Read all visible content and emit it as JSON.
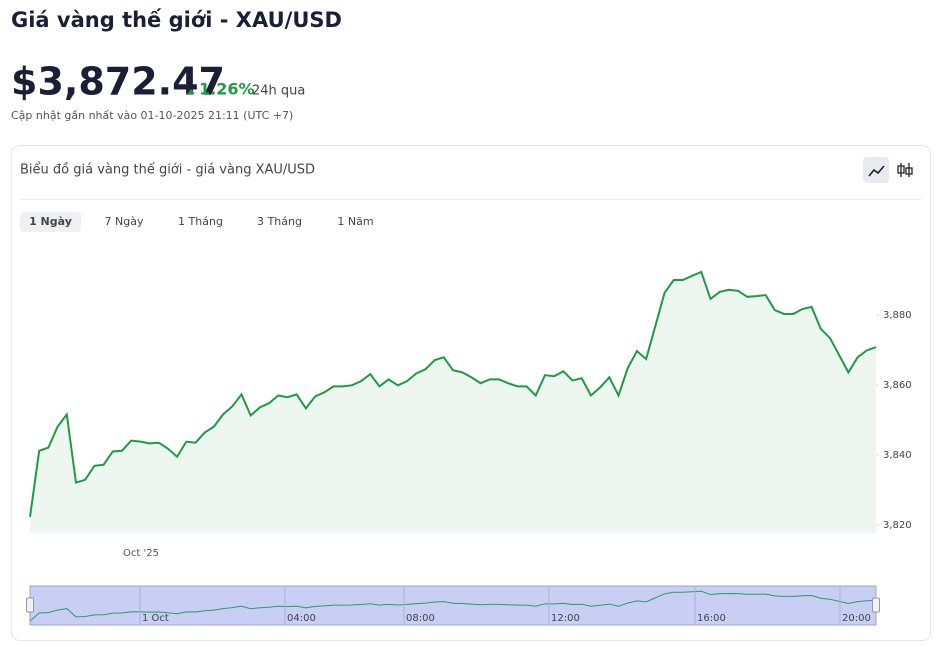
{
  "header": {
    "title": "Giá vàng thế giới - XAU/USD",
    "price": "$3,872.47",
    "change": "1.26%",
    "change_period": "24h qua",
    "updated": "Cập nhật gần nhất vào 01-10-2025 21:11 (UTC +7)"
  },
  "chart_data": {
    "type": "area",
    "title": "Biểu đồ giá vàng thế giới - giá vàng XAU/USD",
    "tabs": [
      "1 Ngày",
      "7 Ngày",
      "1 Tháng",
      "3 Tháng",
      "1 Năm"
    ],
    "active_tab": 0,
    "x_label": "Oct '25",
    "values": [
      3822.3,
      3841.2,
      3842.1,
      3848.1,
      3851.6,
      3832.1,
      3832.9,
      3836.9,
      3837.2,
      3841.0,
      3841.2,
      3844.1,
      3843.8,
      3843.3,
      3843.5,
      3841.8,
      3839.5,
      3843.8,
      3843.5,
      3846.4,
      3848.1,
      3851.6,
      3853.9,
      3857.3,
      3851.3,
      3853.6,
      3854.8,
      3857.0,
      3856.5,
      3857.3,
      3853.3,
      3856.7,
      3857.9,
      3859.6,
      3859.6,
      3859.9,
      3861.1,
      3863.1,
      3859.6,
      3861.6,
      3859.9,
      3861.1,
      3863.3,
      3864.5,
      3867.1,
      3867.9,
      3864.2,
      3863.6,
      3862.2,
      3860.5,
      3861.6,
      3861.6,
      3860.5,
      3859.6,
      3859.6,
      3857.0,
      3862.8,
      3862.5,
      3863.9,
      3861.3,
      3861.9,
      3857.0,
      3859.3,
      3862.2,
      3857.0,
      3864.8,
      3869.7,
      3867.4,
      3876.8,
      3886.3,
      3890.0,
      3890.0,
      3891.2,
      3892.3,
      3884.6,
      3886.6,
      3887.2,
      3886.9,
      3885.2,
      3885.4,
      3885.7,
      3881.4,
      3880.3,
      3880.3,
      3881.7,
      3882.3,
      3876.0,
      3873.4,
      3868.5,
      3863.6,
      3867.9,
      3869.9,
      3870.8
    ],
    "color": "#1f9a45",
    "fill": "#eef7ef",
    "ylim": [
      3817.7,
      3900
    ],
    "yticks": [
      {
        "value": 3820,
        "label": "3,820"
      },
      {
        "value": 3840,
        "label": "3,840"
      },
      {
        "value": 3860,
        "label": "3,860"
      },
      {
        "value": 3880,
        "label": "3,880"
      }
    ],
    "navigator_labels": [
      "1 Oct",
      "04:00",
      "08:00",
      "12:00",
      "16:00",
      "20:00"
    ]
  }
}
